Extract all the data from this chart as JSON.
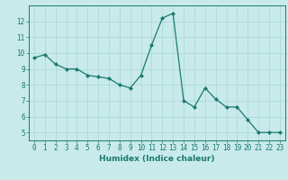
{
  "x": [
    0,
    1,
    2,
    3,
    4,
    5,
    6,
    7,
    8,
    9,
    10,
    11,
    12,
    13,
    14,
    15,
    16,
    17,
    18,
    19,
    20,
    21,
    22,
    23
  ],
  "y": [
    9.7,
    9.9,
    9.3,
    9.0,
    9.0,
    8.6,
    8.5,
    8.4,
    8.0,
    7.8,
    8.6,
    10.5,
    12.2,
    12.5,
    7.0,
    6.6,
    7.8,
    7.1,
    6.6,
    6.6,
    5.8,
    5.0,
    5.0,
    5.0
  ],
  "line_color": "#1a7a6e",
  "marker": "D",
  "marker_size": 2.0,
  "bg_color": "#c8eaea",
  "grid_color": "#b0d8d8",
  "xlabel": "Humidex (Indice chaleur)",
  "xlim": [
    -0.5,
    23.5
  ],
  "ylim": [
    4.5,
    13.0
  ],
  "yticks": [
    5,
    6,
    7,
    8,
    9,
    10,
    11,
    12
  ],
  "xticks": [
    0,
    1,
    2,
    3,
    4,
    5,
    6,
    7,
    8,
    9,
    10,
    11,
    12,
    13,
    14,
    15,
    16,
    17,
    18,
    19,
    20,
    21,
    22,
    23
  ],
  "tick_color": "#1a7a6e",
  "label_fontsize": 6.5,
  "tick_fontsize": 5.5,
  "linewidth": 0.9
}
